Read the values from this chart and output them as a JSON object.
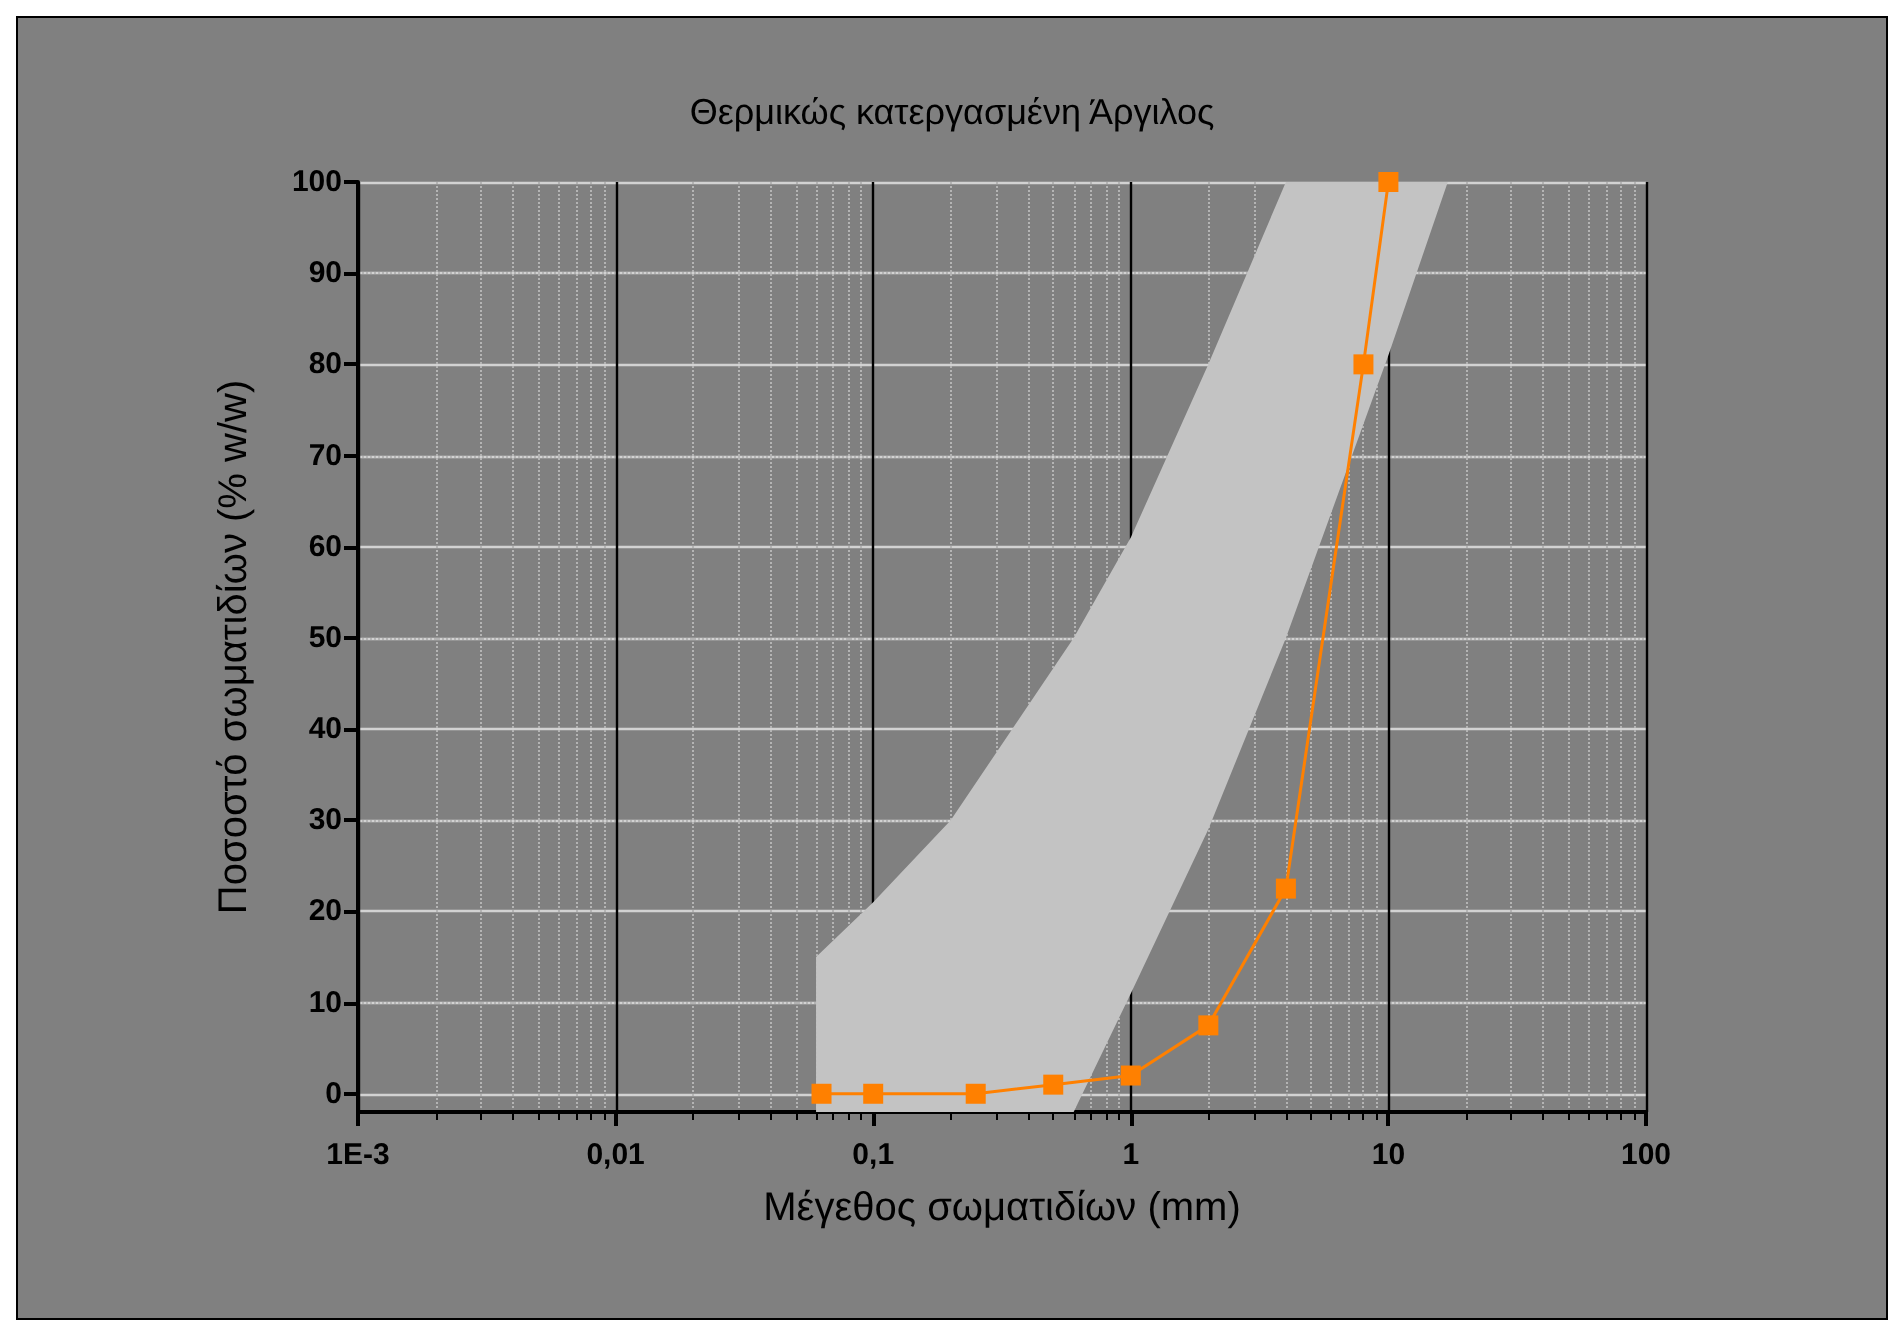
{
  "chart_data": {
    "type": "line",
    "title": "Θερμικώς κατεργασμένη Άργιλος",
    "xlabel": "Μέγεθος σωματιδίων (mm)",
    "ylabel": "Ποσοστό σωματιδίων (% w/w)",
    "log": "x",
    "xlim": [
      0.001,
      100
    ],
    "xticks": [
      {
        "value": 0.001,
        "label": "1E-3"
      },
      {
        "value": 0.01,
        "label": "0,01"
      },
      {
        "value": 0.1,
        "label": "0,1"
      },
      1,
      10,
      100
    ],
    "ylim": [
      -2,
      100
    ],
    "yticks": [
      0,
      10,
      20,
      30,
      40,
      50,
      60,
      70,
      80,
      90,
      100
    ],
    "grid": true,
    "line_style": "solid",
    "x": [
      0.063,
      0.1,
      0.25,
      0.5,
      1,
      2,
      4,
      8,
      10
    ],
    "series": [
      {
        "color": "#c3c3c3",
        "x": [
          0.06,
          0.1,
          0.2,
          0.6,
          1,
          2,
          4,
          10,
          17
        ],
        "values": [
          null,
          null,
          null,
          null,
          null,
          null,
          null,
          null,
          null
        ],
        "upper": [
          15,
          21,
          30,
          50,
          61,
          80,
          100,
          100,
          100
        ],
        "lower": [
          -2,
          -2,
          -2,
          -2,
          11,
          29,
          50,
          81,
          100
        ]
      },
      {
        "color": "#ff8000",
        "marker": "square",
        "values": [
          0,
          0,
          0,
          1,
          2,
          7.5,
          22.5,
          80,
          100
        ]
      }
    ]
  }
}
